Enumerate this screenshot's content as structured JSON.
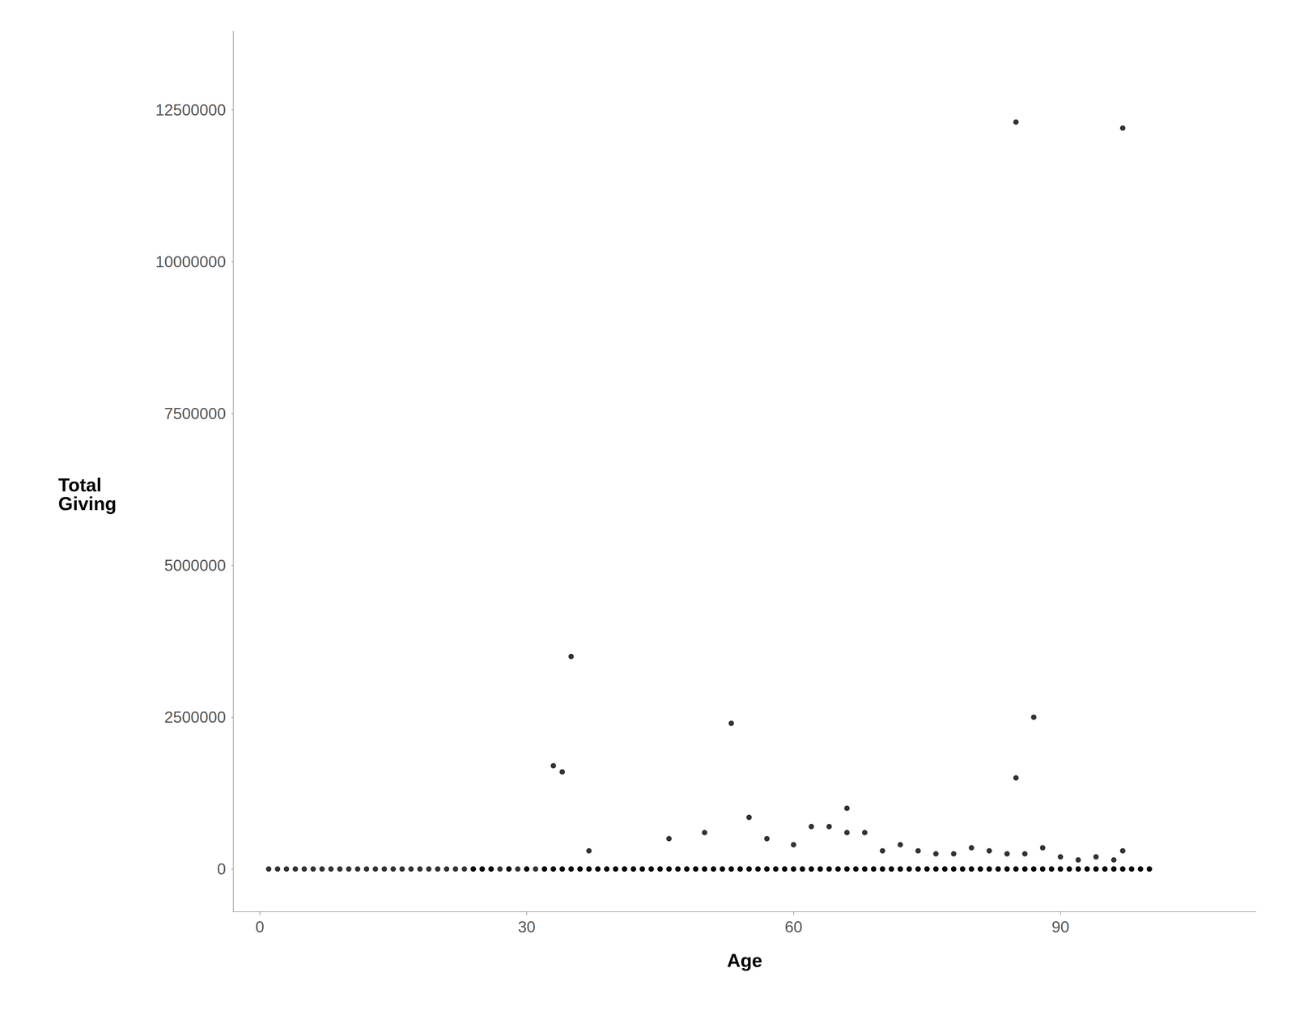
{
  "chart_data": {
    "type": "scatter",
    "xlabel": "Age",
    "ylabel": "Total\nGiving",
    "color": "#000000",
    "grid": false,
    "xlim": [
      -3,
      112
    ],
    "ylim": [
      -700000,
      13800000
    ],
    "xticks": [
      0,
      30,
      60,
      90
    ],
    "yticks": [
      0,
      2500000,
      5000000,
      7500000,
      10000000,
      12500000
    ],
    "x": [
      1,
      2,
      3,
      4,
      5,
      6,
      7,
      8,
      9,
      10,
      11,
      12,
      13,
      14,
      15,
      16,
      17,
      18,
      19,
      20,
      21,
      22,
      23,
      24,
      25,
      26,
      27,
      28,
      29,
      30,
      31,
      32,
      33,
      34,
      35,
      36,
      37,
      38,
      39,
      40,
      41,
      42,
      43,
      44,
      45,
      46,
      47,
      48,
      49,
      50,
      51,
      52,
      53,
      54,
      55,
      56,
      57,
      58,
      59,
      60,
      61,
      62,
      63,
      64,
      65,
      66,
      67,
      68,
      69,
      70,
      71,
      72,
      73,
      74,
      75,
      76,
      77,
      78,
      79,
      80,
      81,
      82,
      83,
      84,
      85,
      86,
      87,
      88,
      89,
      90,
      91,
      92,
      93,
      94,
      95,
      96,
      97,
      98,
      99,
      100,
      24,
      25,
      26,
      28,
      30,
      32,
      33,
      34,
      35,
      36,
      37,
      38,
      39,
      40,
      41,
      42,
      43,
      44,
      45,
      46,
      47,
      48,
      49,
      50,
      51,
      52,
      53,
      54,
      55,
      56,
      57,
      58,
      59,
      60,
      61,
      62,
      63,
      64,
      65,
      66,
      67,
      68,
      69,
      70,
      71,
      72,
      73,
      74,
      75,
      76,
      77,
      78,
      79,
      80,
      81,
      82,
      83,
      84,
      85,
      86,
      87,
      88,
      89,
      90,
      91,
      92,
      93,
      94,
      95,
      96,
      97,
      98,
      99,
      100,
      33,
      34,
      37,
      46,
      50,
      55,
      57,
      60,
      62,
      64,
      66,
      68,
      70,
      72,
      74,
      76,
      78,
      80,
      82,
      84,
      86,
      88,
      90,
      92,
      94,
      96,
      35,
      53,
      66,
      85,
      87,
      97,
      85,
      97
    ],
    "y": [
      0,
      0,
      0,
      0,
      0,
      0,
      0,
      0,
      0,
      0,
      0,
      0,
      0,
      0,
      0,
      0,
      0,
      0,
      0,
      0,
      0,
      0,
      0,
      0,
      0,
      0,
      0,
      0,
      0,
      0,
      0,
      0,
      0,
      0,
      0,
      0,
      0,
      0,
      0,
      0,
      0,
      0,
      0,
      0,
      0,
      0,
      0,
      0,
      0,
      0,
      0,
      0,
      0,
      0,
      0,
      0,
      0,
      0,
      0,
      0,
      0,
      0,
      0,
      0,
      0,
      0,
      0,
      0,
      0,
      0,
      0,
      0,
      0,
      0,
      0,
      0,
      0,
      0,
      0,
      0,
      0,
      0,
      0,
      0,
      0,
      0,
      0,
      0,
      0,
      0,
      0,
      0,
      0,
      0,
      0,
      0,
      0,
      0,
      0,
      0,
      0,
      0,
      0,
      0,
      0,
      0,
      0,
      0,
      0,
      0,
      0,
      0,
      0,
      0,
      0,
      0,
      0,
      0,
      0,
      0,
      0,
      0,
      0,
      0,
      0,
      0,
      0,
      0,
      0,
      0,
      0,
      0,
      0,
      0,
      0,
      0,
      0,
      0,
      0,
      0,
      0,
      0,
      0,
      0,
      0,
      0,
      0,
      0,
      0,
      0,
      0,
      0,
      0,
      0,
      0,
      0,
      0,
      0,
      0,
      0,
      0,
      0,
      0,
      0,
      0,
      0,
      0,
      0,
      0,
      0,
      0,
      0,
      0,
      0,
      1700000,
      1600000,
      300000,
      500000,
      600000,
      850000,
      500000,
      400000,
      700000,
      700000,
      600000,
      600000,
      300000,
      400000,
      300000,
      250000,
      250000,
      350000,
      300000,
      250000,
      250000,
      350000,
      200000,
      150000,
      200000,
      150000,
      3500000,
      2400000,
      1000000,
      1500000,
      2500000,
      300000,
      12300000,
      12200000
    ]
  }
}
